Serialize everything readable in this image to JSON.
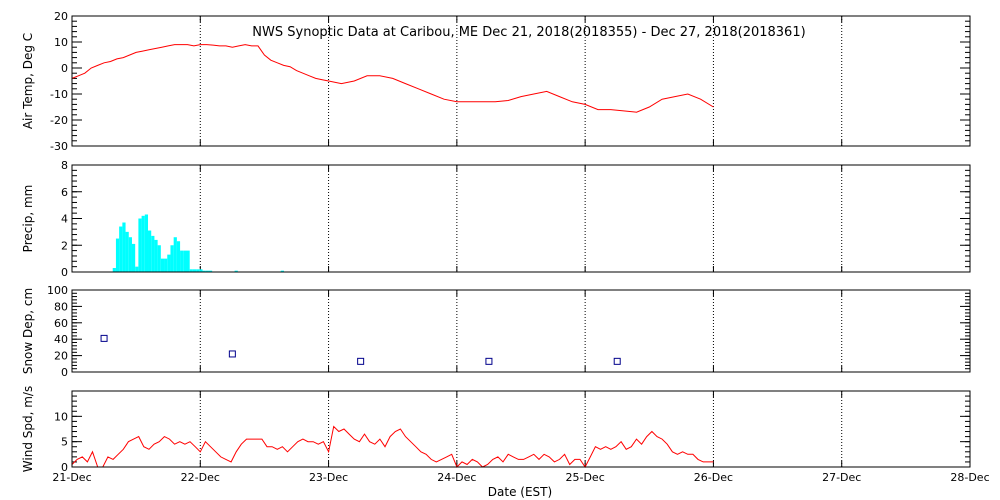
{
  "title": "NWS Synoptic Data at Caribou, ME    Dec 21, 2018(2018355) - Dec 27, 2018(2018361)",
  "x_axis": {
    "label": "Date (EST)",
    "ticks": [
      "21-Dec",
      "22-Dec",
      "23-Dec",
      "24-Dec",
      "25-Dec",
      "26-Dec",
      "27-Dec",
      "28-Dec"
    ],
    "range_days": [
      0,
      7
    ],
    "dotted_grid": true
  },
  "colors": {
    "temperature": "#ff0000",
    "precip": "#00ffff",
    "snow": "#00008b",
    "wind": "#ff0000",
    "grid": "#000000"
  },
  "chart_data": [
    {
      "type": "line",
      "ylabel": "Air Temp, Deg C",
      "ylim": [
        -30,
        20
      ],
      "yticks": [
        -30,
        -20,
        -10,
        0,
        10,
        20
      ],
      "x_units": "days since 21-Dec 00:00 EST",
      "x": [
        0,
        0.05,
        0.1,
        0.15,
        0.2,
        0.25,
        0.3,
        0.35,
        0.4,
        0.45,
        0.5,
        0.55,
        0.6,
        0.65,
        0.7,
        0.75,
        0.8,
        0.85,
        0.9,
        0.95,
        1.0,
        1.05,
        1.1,
        1.15,
        1.2,
        1.25,
        1.3,
        1.35,
        1.4,
        1.45,
        1.5,
        1.55,
        1.6,
        1.65,
        1.7,
        1.75,
        1.8,
        1.85,
        1.9,
        1.95,
        2.0,
        2.1,
        2.2,
        2.3,
        2.4,
        2.5,
        2.6,
        2.7,
        2.8,
        2.9,
        3.0,
        3.1,
        3.2,
        3.3,
        3.4,
        3.5,
        3.6,
        3.7,
        3.8,
        3.9,
        4.0,
        4.1,
        4.2,
        4.3,
        4.4,
        4.5,
        4.6,
        4.7,
        4.8,
        4.9,
        5.0
      ],
      "values": [
        -4,
        -3,
        -2,
        0,
        1,
        2,
        2.5,
        3.5,
        4,
        5,
        6,
        6.5,
        7,
        7.5,
        8,
        8.5,
        9,
        9,
        9,
        8.5,
        9,
        9,
        8.8,
        8.5,
        8.5,
        8,
        8.5,
        9,
        8.5,
        8.5,
        5,
        3,
        2,
        1,
        0.5,
        -1,
        -2,
        -3,
        -4,
        -4.5,
        -5,
        -6,
        -5,
        -3,
        -3,
        -4,
        -6,
        -8,
        -10,
        -12,
        -13,
        -13,
        -13,
        -13,
        -12.5,
        -11,
        -10,
        -9,
        -11,
        -13,
        -14,
        -16,
        -16,
        -16.5,
        -17,
        -15,
        -12,
        -11,
        -10,
        -12,
        -15
      ]
    },
    {
      "type": "bar",
      "ylabel": "Precip, mm",
      "ylim": [
        0,
        8
      ],
      "yticks": [
        0,
        2,
        4,
        6,
        8
      ],
      "bar_width_days": 0.025,
      "x_units": "days since 21-Dec 00:00 EST",
      "x": [
        0.33,
        0.355,
        0.38,
        0.405,
        0.43,
        0.455,
        0.48,
        0.505,
        0.53,
        0.555,
        0.58,
        0.605,
        0.63,
        0.655,
        0.68,
        0.705,
        0.73,
        0.755,
        0.78,
        0.805,
        0.83,
        0.855,
        0.88,
        0.905,
        0.93,
        0.955,
        0.98,
        1.005,
        1.03,
        1.055,
        1.08,
        1.28,
        1.64
      ],
      "values": [
        0.3,
        2.5,
        3.4,
        3.7,
        3.0,
        2.6,
        2.1,
        0.4,
        4.0,
        4.2,
        4.3,
        3.1,
        2.7,
        2.4,
        2.0,
        1.0,
        1.0,
        1.3,
        2.0,
        2.6,
        2.3,
        1.6,
        1.6,
        1.6,
        0.2,
        0.2,
        0.2,
        0.2,
        0.1,
        0.1,
        0.1,
        0.1,
        0.1
      ]
    },
    {
      "type": "scatter",
      "ylabel": "Snow Dep, cm",
      "ylim": [
        0,
        100
      ],
      "yticks": [
        0,
        20,
        40,
        60,
        80,
        100
      ],
      "x_units": "days since 21-Dec 00:00 EST",
      "x": [
        0.25,
        1.25,
        2.25,
        3.25,
        4.25
      ],
      "values": [
        41,
        22,
        13,
        13,
        13
      ]
    },
    {
      "type": "line",
      "ylabel": "Wind Spd, m/s",
      "ylim": [
        0,
        15
      ],
      "yticks": [
        0,
        5,
        10
      ],
      "x_units": "days since 21-Dec 00:00 EST",
      "x": [
        0,
        0.04,
        0.08,
        0.12,
        0.16,
        0.2,
        0.24,
        0.28,
        0.32,
        0.36,
        0.4,
        0.44,
        0.48,
        0.52,
        0.56,
        0.6,
        0.64,
        0.68,
        0.72,
        0.76,
        0.8,
        0.84,
        0.88,
        0.92,
        0.96,
        1.0,
        1.04,
        1.08,
        1.12,
        1.16,
        1.2,
        1.24,
        1.28,
        1.32,
        1.36,
        1.4,
        1.44,
        1.48,
        1.52,
        1.56,
        1.6,
        1.64,
        1.68,
        1.72,
        1.76,
        1.8,
        1.84,
        1.88,
        1.92,
        1.96,
        2.0,
        2.04,
        2.08,
        2.12,
        2.16,
        2.2,
        2.24,
        2.28,
        2.32,
        2.36,
        2.4,
        2.44,
        2.48,
        2.52,
        2.56,
        2.6,
        2.64,
        2.68,
        2.72,
        2.76,
        2.8,
        2.84,
        2.88,
        2.92,
        2.96,
        3.0,
        3.04,
        3.08,
        3.12,
        3.16,
        3.2,
        3.24,
        3.28,
        3.32,
        3.36,
        3.4,
        3.44,
        3.48,
        3.52,
        3.56,
        3.6,
        3.64,
        3.68,
        3.72,
        3.76,
        3.8,
        3.84,
        3.88,
        3.92,
        3.96,
        4.0,
        4.04,
        4.08,
        4.12,
        4.16,
        4.2,
        4.24,
        4.28,
        4.32,
        4.36,
        4.4,
        4.44,
        4.48,
        4.52,
        4.56,
        4.6,
        4.64,
        4.68,
        4.72,
        4.76,
        4.8,
        4.84,
        4.88,
        4.92,
        4.96,
        5.0
      ],
      "values": [
        0.5,
        1.5,
        2,
        1,
        3,
        0,
        0,
        2,
        1.5,
        2.5,
        3.5,
        5,
        5.5,
        6,
        4,
        3.5,
        4.5,
        5,
        6,
        5.5,
        4.5,
        5,
        4.5,
        5,
        4,
        3,
        5,
        4,
        3,
        2,
        1.5,
        1,
        3,
        4.5,
        5.5,
        5.5,
        5.5,
        5.5,
        4,
        4,
        3.5,
        4,
        3,
        4,
        5,
        5.5,
        5,
        5,
        4.5,
        5,
        3,
        8,
        7,
        7.5,
        6.5,
        5.5,
        5,
        6.5,
        5,
        4.5,
        5.5,
        4,
        6,
        7,
        7.5,
        6,
        5,
        4,
        3,
        2.5,
        1.5,
        1,
        1.5,
        2,
        2.5,
        0,
        1,
        0.5,
        1.5,
        1,
        0,
        0.5,
        1.5,
        2,
        1,
        2.5,
        2,
        1.5,
        1.5,
        2,
        2.5,
        1.5,
        2.5,
        2,
        1,
        1.5,
        2.5,
        0.5,
        1.5,
        1.5,
        0,
        2,
        4,
        3.5,
        4,
        3.5,
        4,
        5,
        3.5,
        4,
        5.5,
        4.5,
        6,
        7,
        6,
        5.5,
        4.5,
        3,
        2.5,
        3,
        2.5,
        2.5,
        1.5,
        1,
        1,
        1
      ]
    }
  ]
}
